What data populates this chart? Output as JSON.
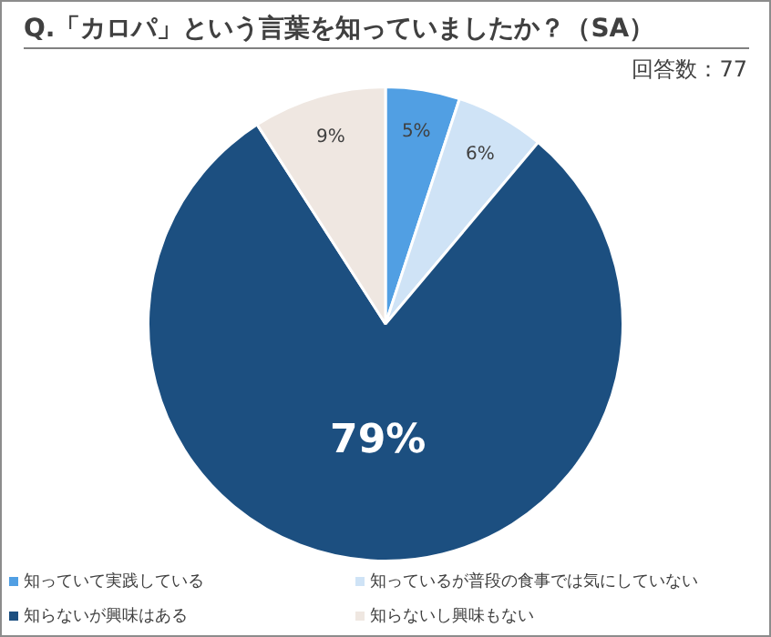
{
  "chart_data": {
    "type": "pie",
    "title": "Q.「カロパ」という言葉を知っていましたか？（SA）",
    "subtitle": "回答数：77",
    "categories": [
      "知っていて実践している",
      "知っているが普段の食事では気にしていない",
      "知らないが興味はある",
      "知らないし興味もない"
    ],
    "values": [
      5,
      6,
      79,
      9
    ],
    "colors": [
      "#519fe3",
      "#cfe3f6",
      "#1c4f80",
      "#efe7e1"
    ],
    "value_labels": [
      "5%",
      "6%",
      "79%",
      "9%"
    ],
    "legend": "bottom"
  }
}
